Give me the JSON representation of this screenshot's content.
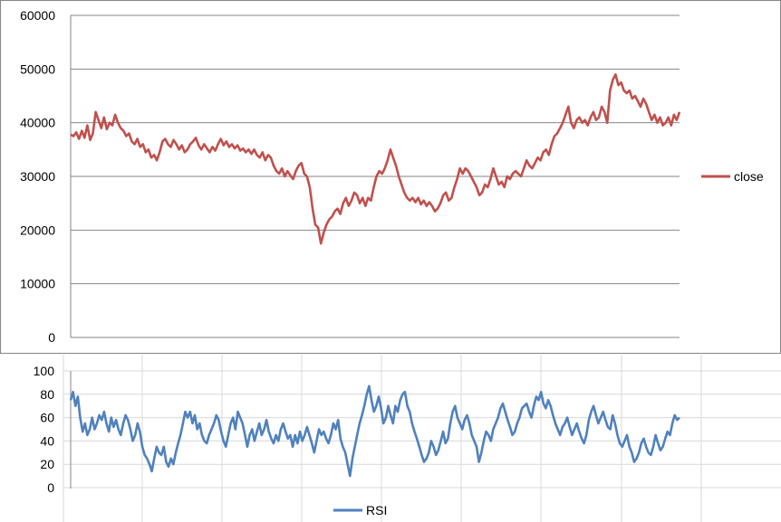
{
  "chart_data": [
    {
      "type": "line",
      "series": [
        {
          "name": "close",
          "color": "#C0504D",
          "values": [
            37800,
            37500,
            38200,
            37000,
            38500,
            37200,
            39500,
            36800,
            38000,
            42000,
            40500,
            39000,
            41000,
            38800,
            40000,
            39500,
            41500,
            40000,
            39000,
            38500,
            37500,
            38000,
            36500,
            36000,
            37000,
            35500,
            36000,
            34500,
            35000,
            33500,
            34000,
            33000,
            34500,
            36500,
            37000,
            36000,
            35500,
            36800,
            36000,
            35000,
            35800,
            34500,
            35000,
            36000,
            36500,
            37200,
            35800,
            35000,
            36000,
            35200,
            34500,
            35500,
            34800,
            36000,
            37000,
            35800,
            36500,
            35500,
            36000,
            35200,
            35800,
            34800,
            35200,
            34500,
            35000,
            34200,
            35000,
            34000,
            33500,
            34500,
            33000,
            34000,
            33500,
            32000,
            31000,
            30500,
            31500,
            30000,
            31000,
            30200,
            29500,
            31000,
            32000,
            32500,
            30500,
            30000,
            28000,
            24000,
            21000,
            20500,
            17500,
            19500,
            21000,
            22000,
            22500,
            23500,
            24000,
            23000,
            25000,
            26000,
            24500,
            25500,
            27000,
            26500,
            25000,
            26000,
            24500,
            26000,
            25500,
            28000,
            30000,
            31000,
            30500,
            31500,
            33000,
            35000,
            33500,
            32000,
            30000,
            28500,
            27000,
            26000,
            25500,
            26000,
            25200,
            26000,
            24800,
            25500,
            24500,
            25200,
            24500,
            23500,
            24000,
            25000,
            26500,
            27000,
            25500,
            26000,
            28000,
            29500,
            31500,
            30500,
            31500,
            31000,
            30000,
            29000,
            28000,
            26500,
            27000,
            28500,
            28000,
            29500,
            31500,
            30000,
            28500,
            29000,
            28000,
            30000,
            29500,
            30500,
            31000,
            30500,
            30000,
            31500,
            33000,
            32000,
            31500,
            32500,
            33500,
            33000,
            34500,
            35000,
            34000,
            36000,
            37500,
            38000,
            39000,
            40000,
            41500,
            43000,
            40000,
            39000,
            40500,
            41000,
            40000,
            40500,
            39500,
            41000,
            42000,
            40500,
            41000,
            43000,
            42000,
            40000,
            46000,
            48000,
            49000,
            47000,
            47500,
            46000,
            45500,
            46000,
            44500,
            45000,
            44000,
            43000,
            44500,
            43500,
            42000,
            40500,
            41500,
            40000,
            41000,
            39500,
            40000,
            41000,
            39500,
            41500,
            40500,
            42000
          ]
        }
      ],
      "ylim": [
        0,
        60000
      ],
      "yticks": [
        "0",
        "10000",
        "20000",
        "30000",
        "40000",
        "50000",
        "60000"
      ],
      "grid": true,
      "legend": "right"
    },
    {
      "type": "line",
      "series": [
        {
          "name": "RSI",
          "color": "#4F81BD",
          "values": [
            75,
            82,
            70,
            78,
            60,
            48,
            55,
            45,
            50,
            60,
            50,
            55,
            62,
            58,
            65,
            55,
            48,
            60,
            52,
            58,
            50,
            45,
            55,
            62,
            58,
            50,
            40,
            45,
            55,
            48,
            35,
            28,
            25,
            20,
            14,
            25,
            35,
            30,
            28,
            35,
            22,
            18,
            25,
            20,
            30,
            38,
            45,
            55,
            65,
            60,
            65,
            55,
            62,
            50,
            55,
            45,
            40,
            38,
            45,
            50,
            55,
            62,
            58,
            48,
            40,
            35,
            45,
            55,
            60,
            50,
            65,
            60,
            55,
            45,
            35,
            45,
            50,
            40,
            48,
            55,
            45,
            50,
            58,
            48,
            42,
            38,
            45,
            40,
            50,
            55,
            48,
            42,
            45,
            35,
            45,
            38,
            48,
            40,
            45,
            52,
            45,
            38,
            30,
            40,
            50,
            45,
            48,
            42,
            38,
            45,
            55,
            50,
            58,
            42,
            35,
            30,
            20,
            10,
            25,
            35,
            45,
            55,
            62,
            70,
            80,
            87,
            75,
            65,
            70,
            78,
            68,
            55,
            60,
            70,
            62,
            55,
            70,
            65,
            75,
            80,
            82,
            70,
            65,
            55,
            48,
            42,
            35,
            28,
            22,
            25,
            30,
            40,
            35,
            28,
            32,
            40,
            48,
            38,
            42,
            55,
            65,
            70,
            60,
            55,
            50,
            58,
            62,
            55,
            45,
            40,
            35,
            22,
            30,
            40,
            48,
            45,
            40,
            50,
            55,
            60,
            68,
            72,
            65,
            58,
            52,
            45,
            48,
            55,
            60,
            68,
            70,
            72,
            65,
            60,
            70,
            78,
            75,
            82,
            72,
            68,
            75,
            70,
            62,
            55,
            50,
            45,
            52,
            55,
            60,
            52,
            45,
            50,
            55,
            48,
            42,
            38,
            45,
            58,
            65,
            70,
            62,
            55,
            60,
            65,
            58,
            52,
            50,
            62,
            55,
            45,
            38,
            35,
            40,
            45,
            35,
            30,
            22,
            25,
            30,
            38,
            42,
            35,
            30,
            28,
            35,
            45,
            38,
            32,
            35,
            42,
            48,
            45,
            55,
            62,
            58,
            60
          ]
        }
      ],
      "ylim": [
        0,
        100
      ],
      "yticks": [
        "0",
        "20",
        "40",
        "60",
        "80",
        "100"
      ],
      "grid": true,
      "legend": "bottom"
    }
  ]
}
